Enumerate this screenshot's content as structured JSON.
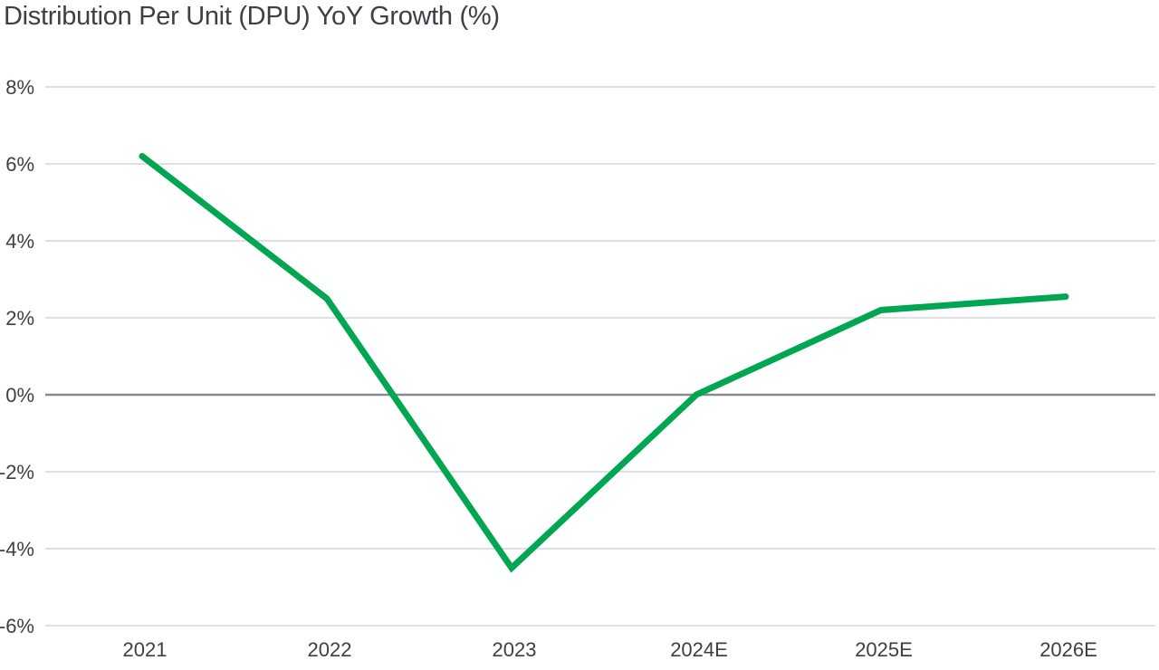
{
  "chart_data": {
    "type": "line",
    "title": "Distribution Per Unit (DPU) YoY Growth (%)",
    "xlabel": "",
    "ylabel": "",
    "categories": [
      "2021",
      "2022",
      "2023",
      "2024E",
      "2025E",
      "2026E"
    ],
    "series": [
      {
        "values": [
          6.2,
          2.5,
          -4.5,
          0.0,
          2.2,
          2.55
        ],
        "color": "#00a651"
      }
    ],
    "ylim": [
      -6,
      8
    ],
    "yticks": [
      8,
      6,
      4,
      2,
      0,
      -2,
      -4,
      -6
    ],
    "ytick_labels": [
      "8%",
      "6%",
      "4%",
      "2%",
      "0%",
      "-2%",
      "-4%",
      "-6%"
    ],
    "grid": true,
    "legend": "none",
    "colors": {
      "gridline": "#bfc0c4",
      "zero_line": "#8a8b91",
      "text": "#3c3f46"
    }
  }
}
